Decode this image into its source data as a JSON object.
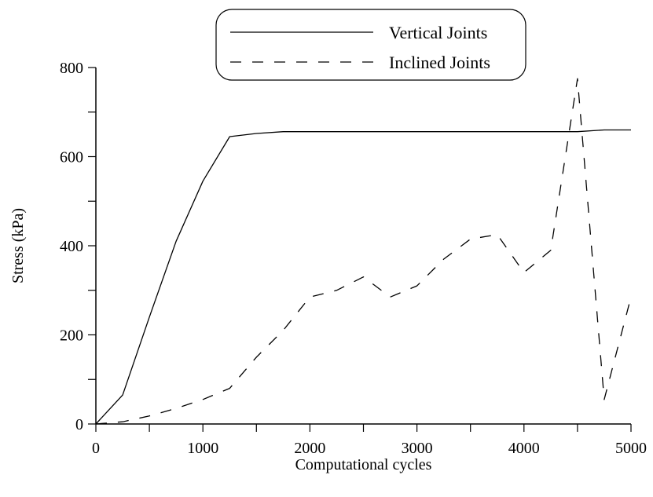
{
  "chart_data": {
    "type": "line",
    "title": "",
    "xlabel": "Computational cycles",
    "ylabel": "Stress (kPa)",
    "xlim": [
      0,
      5000
    ],
    "ylim": [
      0,
      800
    ],
    "xticks": [
      0,
      1000,
      2000,
      3000,
      4000,
      5000
    ],
    "yticks": [
      0,
      200,
      400,
      600,
      800
    ],
    "grid": false,
    "legend_position": "top-center",
    "series": [
      {
        "name": "Vertical Joints",
        "style": "solid",
        "x": [
          0,
          250,
          500,
          750,
          1000,
          1250,
          1500,
          1750,
          2000,
          2500,
          3000,
          3500,
          4000,
          4500,
          4750,
          5000
        ],
        "y": [
          0,
          65,
          240,
          410,
          545,
          645,
          652,
          656,
          656,
          656,
          656,
          656,
          656,
          656,
          660,
          660
        ]
      },
      {
        "name": "Inclined Joints",
        "style": "dashed",
        "x": [
          0,
          250,
          500,
          750,
          1000,
          1250,
          1500,
          1750,
          2000,
          2250,
          2500,
          2750,
          3000,
          3250,
          3500,
          3750,
          4000,
          4250,
          4500,
          4750,
          5000
        ],
        "y": [
          0,
          5,
          18,
          35,
          55,
          80,
          150,
          210,
          285,
          300,
          330,
          285,
          310,
          370,
          415,
          425,
          340,
          390,
          775,
          55,
          285
        ]
      }
    ]
  }
}
